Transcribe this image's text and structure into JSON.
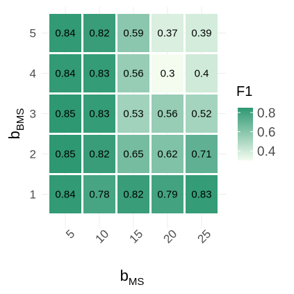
{
  "chart_data": {
    "type": "heatmap",
    "x_categories": [
      "5",
      "10",
      "15",
      "20",
      "25"
    ],
    "y_categories": [
      "1",
      "2",
      "3",
      "4",
      "5"
    ],
    "xlabel": {
      "base": "b",
      "sub": "MS"
    },
    "ylabel": {
      "base": "b",
      "sub": "BMS"
    },
    "values": [
      [
        0.84,
        0.78,
        0.82,
        0.79,
        0.83
      ],
      [
        0.85,
        0.82,
        0.65,
        0.62,
        0.71
      ],
      [
        0.85,
        0.83,
        0.53,
        0.56,
        0.52
      ],
      [
        0.84,
        0.83,
        0.56,
        0.3,
        0.4
      ],
      [
        0.84,
        0.82,
        0.59,
        0.37,
        0.39
      ]
    ],
    "cell_labels": [
      [
        "0.84",
        "0.78",
        "0.82",
        "0.79",
        "0.83"
      ],
      [
        "0.85",
        "0.82",
        "0.65",
        "0.62",
        "0.71"
      ],
      [
        "0.85",
        "0.83",
        "0.53",
        "0.56",
        "0.52"
      ],
      [
        "0.84",
        "0.83",
        "0.56",
        "0.3",
        "0.4"
      ],
      [
        "0.84",
        "0.82",
        "0.59",
        "0.37",
        "0.39"
      ]
    ],
    "legend": {
      "title": "F1",
      "ticks": [
        "0.8",
        "0.6",
        "0.4"
      ],
      "tick_values": [
        0.8,
        0.6,
        0.4
      ],
      "range": [
        0.3,
        0.85
      ],
      "low_color": "#f3fcef",
      "high_color": "#2e9873"
    },
    "grid": true,
    "x_tick_rotation": "45-degree"
  }
}
